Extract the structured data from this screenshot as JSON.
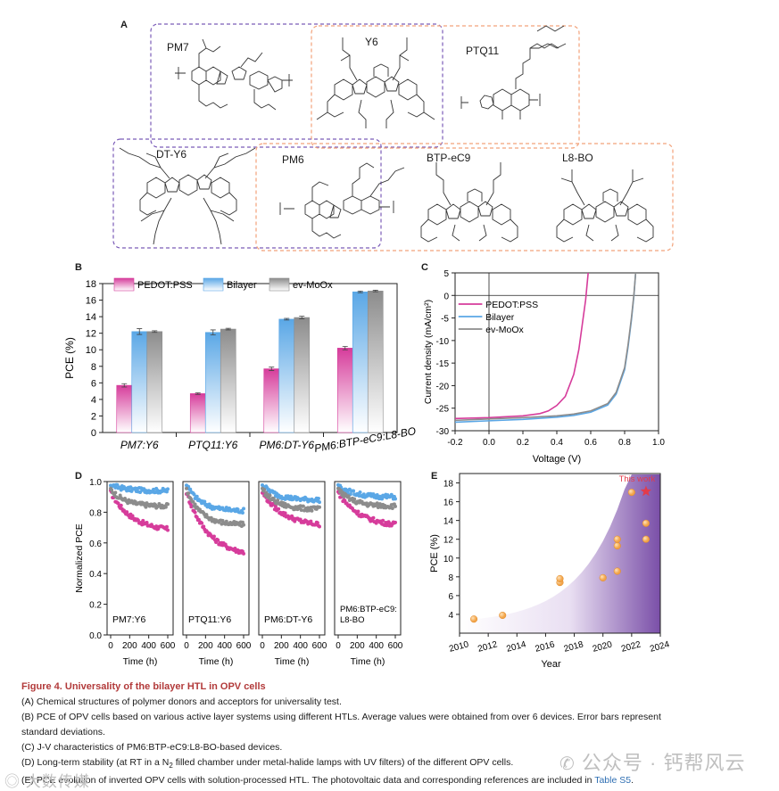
{
  "panels": {
    "a": "A",
    "b": "B",
    "c": "C",
    "d": "D",
    "e": "E"
  },
  "molecules": [
    "PM7",
    "Y6",
    "PTQ11",
    "DT-Y6",
    "PM6",
    "BTP-eC9",
    "L8-BO"
  ],
  "colors": {
    "pedot": "#d63c9b",
    "bilayer": "#5aa7e6",
    "moox": "#8c8c8c",
    "star": "#e23b4a",
    "sphere": "#f2a347",
    "caption_title": "#b23a3a",
    "link": "#2f6fb3"
  },
  "chart_b": {
    "type": "bar",
    "ylabel": "PCE (%)",
    "ylim": [
      0,
      18
    ],
    "yticks": [
      0,
      2,
      4,
      6,
      8,
      10,
      12,
      14,
      16,
      18
    ],
    "categories": [
      "PM7:Y6",
      "PTQ11:Y6",
      "PM6:DT-Y6",
      "PM6:BTP-eC9:L8-BO"
    ],
    "series": [
      {
        "name": "PEDOT:PSS",
        "values": [
          5.7,
          4.7,
          7.7,
          10.2
        ],
        "err": [
          0.2,
          0.1,
          0.2,
          0.2
        ]
      },
      {
        "name": "Bilayer",
        "values": [
          12.2,
          12.1,
          13.7,
          17.0
        ],
        "err": [
          0.35,
          0.3,
          0.1,
          0.1
        ]
      },
      {
        "name": "ev-MoOx",
        "values": [
          12.2,
          12.5,
          13.9,
          17.1
        ],
        "err": [
          0.1,
          0.1,
          0.15,
          0.1
        ]
      }
    ]
  },
  "chart_c": {
    "type": "line",
    "xlabel": "Voltage (V)",
    "ylabel": "Current density (mA/cm²)",
    "xlim": [
      -0.2,
      1.0
    ],
    "ylim": [
      -30,
      5
    ],
    "xticks": [
      "-0.2",
      "0.0",
      "0.2",
      "0.4",
      "0.6",
      "0.8",
      "1.0"
    ],
    "yticks": [
      "5",
      "0",
      "-5",
      "-10",
      "-15",
      "-20",
      "-25",
      "-30"
    ],
    "series": [
      {
        "name": "PEDOT:PSS",
        "x": [
          -0.2,
          0.0,
          0.1,
          0.2,
          0.3,
          0.35,
          0.4,
          0.45,
          0.5,
          0.53,
          0.55,
          0.57,
          0.585
        ],
        "y": [
          -27.3,
          -27.1,
          -26.9,
          -26.7,
          -26.2,
          -25.6,
          -24.4,
          -22.4,
          -17.5,
          -12.0,
          -6.5,
          -1.0,
          5.0
        ]
      },
      {
        "name": "Bilayer",
        "x": [
          -0.2,
          0.0,
          0.2,
          0.4,
          0.5,
          0.6,
          0.7,
          0.75,
          0.8,
          0.82,
          0.84,
          0.855,
          0.865
        ],
        "y": [
          -28.1,
          -27.8,
          -27.5,
          -27.0,
          -26.6,
          -25.9,
          -24.3,
          -21.9,
          -16.5,
          -11.5,
          -5.5,
          0.0,
          5.0
        ]
      },
      {
        "name": "ev-MoOx",
        "x": [
          -0.2,
          0.0,
          0.2,
          0.4,
          0.5,
          0.6,
          0.7,
          0.75,
          0.8,
          0.82,
          0.84,
          0.855,
          0.865
        ],
        "y": [
          -27.7,
          -27.4,
          -27.1,
          -26.7,
          -26.3,
          -25.6,
          -24.0,
          -21.5,
          -16.0,
          -11.0,
          -5.0,
          0.3,
          5.0
        ]
      }
    ]
  },
  "chart_d": {
    "type": "scatter",
    "ylabel": "Normalized PCE",
    "xlabel": "Time (h)",
    "xticks": [
      "0",
      "200",
      "400",
      "600"
    ],
    "yticks": [
      "0.0",
      "0.2",
      "0.4",
      "0.6",
      "0.8",
      "1.0"
    ],
    "subplots": [
      {
        "label": "PM7:Y6",
        "pedot_end": 0.69,
        "bilayer_end": 0.94,
        "moox_end": 0.84
      },
      {
        "label": "PTQ11:Y6",
        "pedot_end": 0.54,
        "bilayer_end": 0.81,
        "moox_end": 0.72
      },
      {
        "label": "PM6:DT-Y6",
        "pedot_end": 0.72,
        "bilayer_end": 0.88,
        "moox_end": 0.82
      },
      {
        "label": "PM6:BTP-eC9:\nL8-BO",
        "label_lines": [
          "PM6:BTP-eC9:",
          "L8-BO"
        ],
        "pedot_end": 0.72,
        "bilayer_end": 0.9,
        "moox_end": 0.84
      }
    ]
  },
  "chart_e": {
    "type": "scatter",
    "ylabel": "PCE (%)",
    "xlabel": "Year",
    "xticks": [
      "2010",
      "2012",
      "2014",
      "2016",
      "2018",
      "2020",
      "2022",
      "2024"
    ],
    "yticks": [
      "4",
      "6",
      "8",
      "10",
      "12",
      "14",
      "16",
      "18"
    ],
    "points": [
      [
        2011,
        3.5
      ],
      [
        2013,
        3.9
      ],
      [
        2017,
        7.4
      ],
      [
        2017,
        7.8
      ],
      [
        2020,
        7.9
      ],
      [
        2021,
        8.6
      ],
      [
        2021,
        11.3
      ],
      [
        2021,
        12.0
      ],
      [
        2022,
        17.0
      ],
      [
        2023,
        12.0
      ],
      [
        2023,
        13.7
      ]
    ],
    "highlight": {
      "x": 2023,
      "y": 17.1,
      "label": "This work"
    }
  },
  "caption": {
    "title": "Figure 4.  Universality of the bilayer HTL in OPV cells",
    "a": "(A) Chemical structures of polymer donors and acceptors for universality test.",
    "b1": "(B) PCE of OPV cells based on various active layer systems using different HTLs. Average values were obtained from over 6 devices. Error bars represent",
    "b2": "standard deviations.",
    "c": "(C) J-V characteristics of PM6:BTP-eC9:L8-BO-based devices.",
    "d_pre": "(D) Long-term stability (at RT in a N",
    "d_sub": "2",
    "d_post": " filled chamber under metal-halide lamps with UV filters) of the different OPV cells.",
    "e_pre": "(E) PCE evolution of inverted OPV cells with solution-processed HTL. The photovoltaic data and corresponding references are included in ",
    "e_link": "Table S5",
    "e_post": "."
  },
  "watermark": {
    "right": "公众号 · 钙帮风云",
    "left": "大数传媒"
  }
}
